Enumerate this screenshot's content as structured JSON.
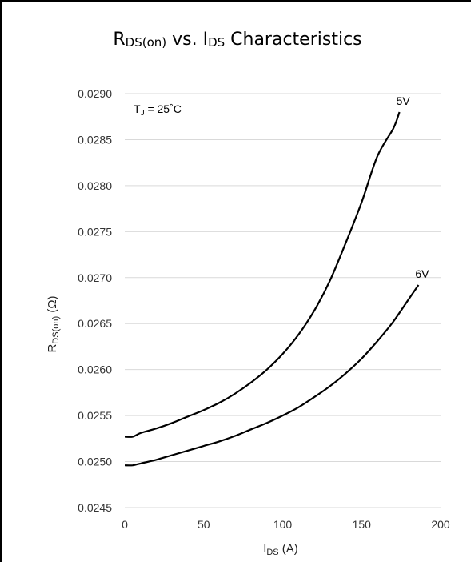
{
  "chart_data": {
    "type": "line",
    "title": {
      "main": "R",
      "main_sub": "DS(on)",
      "mid": " vs. I",
      "mid_sub": "DS",
      "end": " Characteristics"
    },
    "xlabel": {
      "main": "I",
      "sub": "DS",
      "end": " (A)"
    },
    "ylabel": {
      "main": "R",
      "sub": "DS(on)",
      "end": " (Ω)"
    },
    "annotation": {
      "main": "T",
      "sub": "J",
      "end": " = 25˚C"
    },
    "xlim": [
      0,
      200
    ],
    "ylim": [
      0.0245,
      0.029
    ],
    "x_ticks": [
      "0",
      "50",
      "100",
      "150",
      "200"
    ],
    "y_ticks": [
      "0.0245",
      "0.0250",
      "0.0255",
      "0.0260",
      "0.0265",
      "0.0270",
      "0.0275",
      "0.0280",
      "0.0285",
      "0.0290"
    ],
    "grid": "horizontal",
    "series": [
      {
        "name": "5V",
        "x": [
          0,
          5,
          10,
          20,
          30,
          40,
          50,
          60,
          70,
          80,
          90,
          100,
          110,
          120,
          130,
          140,
          150,
          160,
          170,
          174
        ],
        "y": [
          0.02527,
          0.02527,
          0.02531,
          0.02536,
          0.02542,
          0.02549,
          0.02556,
          0.02564,
          0.02574,
          0.02586,
          0.026,
          0.02617,
          0.02638,
          0.02664,
          0.02697,
          0.02738,
          0.02782,
          0.02832,
          0.02862,
          0.0288
        ]
      },
      {
        "name": "6V",
        "x": [
          0,
          5,
          10,
          20,
          30,
          40,
          50,
          60,
          70,
          80,
          90,
          100,
          110,
          120,
          130,
          140,
          150,
          160,
          170,
          180,
          186
        ],
        "y": [
          0.02496,
          0.02496,
          0.02498,
          0.02502,
          0.02507,
          0.02512,
          0.02517,
          0.02522,
          0.02528,
          0.02535,
          0.02542,
          0.0255,
          0.02559,
          0.0257,
          0.02582,
          0.02596,
          0.02612,
          0.02631,
          0.02652,
          0.02677,
          0.02692
        ]
      }
    ]
  }
}
